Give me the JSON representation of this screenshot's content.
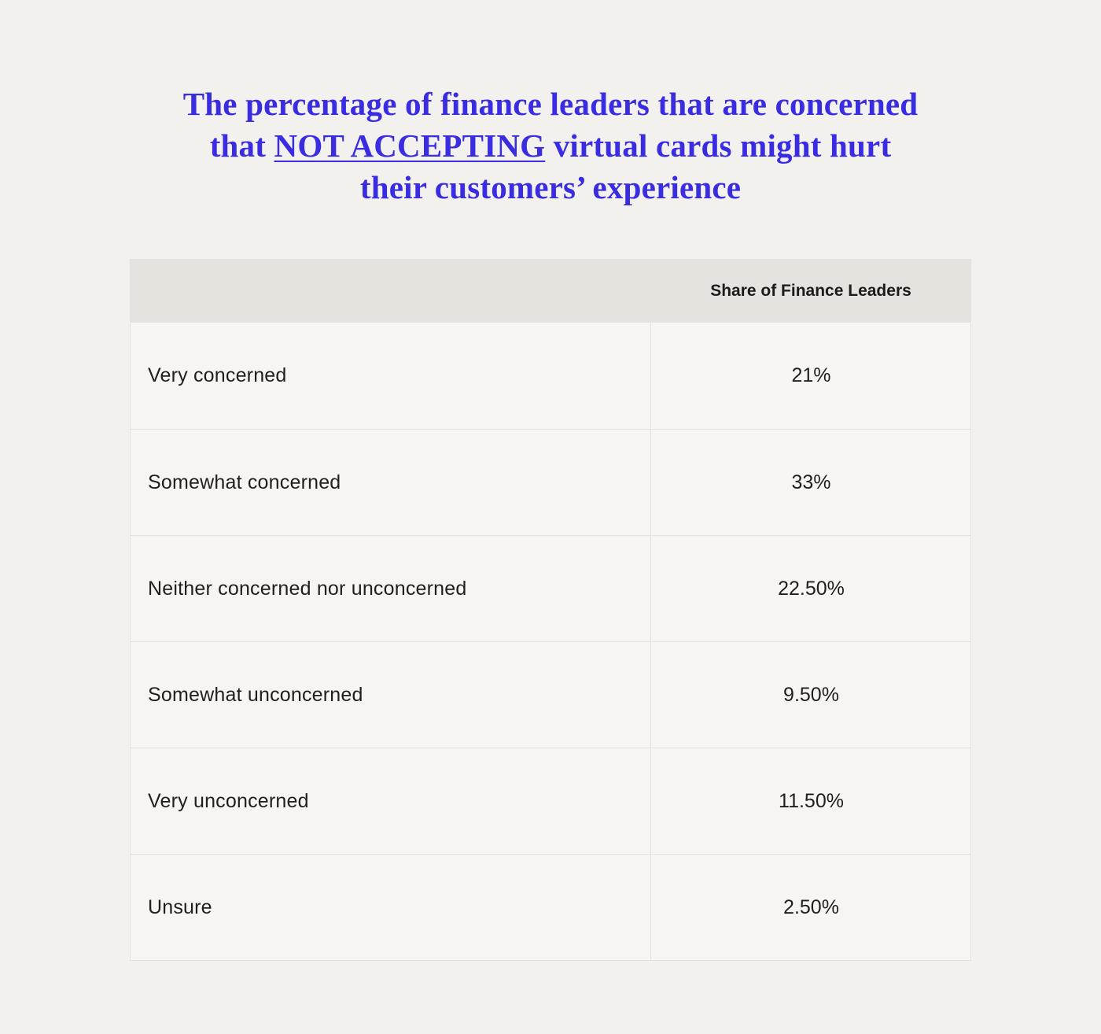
{
  "title": {
    "line1": "The percentage of finance leaders that are concerned",
    "line2_prefix": "that ",
    "line2_underlined": "NOT ACCEPTING",
    "line2_suffix": " virtual cards might hurt",
    "line3": "their customers’ experience",
    "color": "#3a2ce0"
  },
  "table": {
    "header": {
      "value_column_label": "Share of Finance Leaders"
    },
    "rows": [
      {
        "label": "Very concerned",
        "value": "21%"
      },
      {
        "label": "Somewhat concerned",
        "value": "33%"
      },
      {
        "label": "Neither concerned nor unconcerned",
        "value": "22.50%"
      },
      {
        "label": "Somewhat unconcerned",
        "value": "9.50%"
      },
      {
        "label": "Very unconcerned",
        "value": "11.50%"
      },
      {
        "label": "Unsure",
        "value": "2.50%"
      }
    ]
  },
  "colors": {
    "page_background": "#f2f1ee",
    "header_background": "#e5e3dd",
    "row_background": "#f6f5f2",
    "border": "#e4e1da",
    "text": "#211f1e",
    "title": "#3a2ce0"
  },
  "chart_data": {
    "type": "table",
    "title": "The percentage of finance leaders that are concerned that NOT ACCEPTING virtual cards might hurt their customers’ experience",
    "column_header": "Share of Finance Leaders",
    "categories": [
      "Very concerned",
      "Somewhat concerned",
      "Neither concerned nor unconcerned",
      "Somewhat unconcerned",
      "Very unconcerned",
      "Unsure"
    ],
    "values": [
      21,
      33,
      22.5,
      9.5,
      11.5,
      2.5
    ],
    "value_labels": [
      "21%",
      "33%",
      "22.50%",
      "9.50%",
      "11.50%",
      "2.50%"
    ]
  }
}
